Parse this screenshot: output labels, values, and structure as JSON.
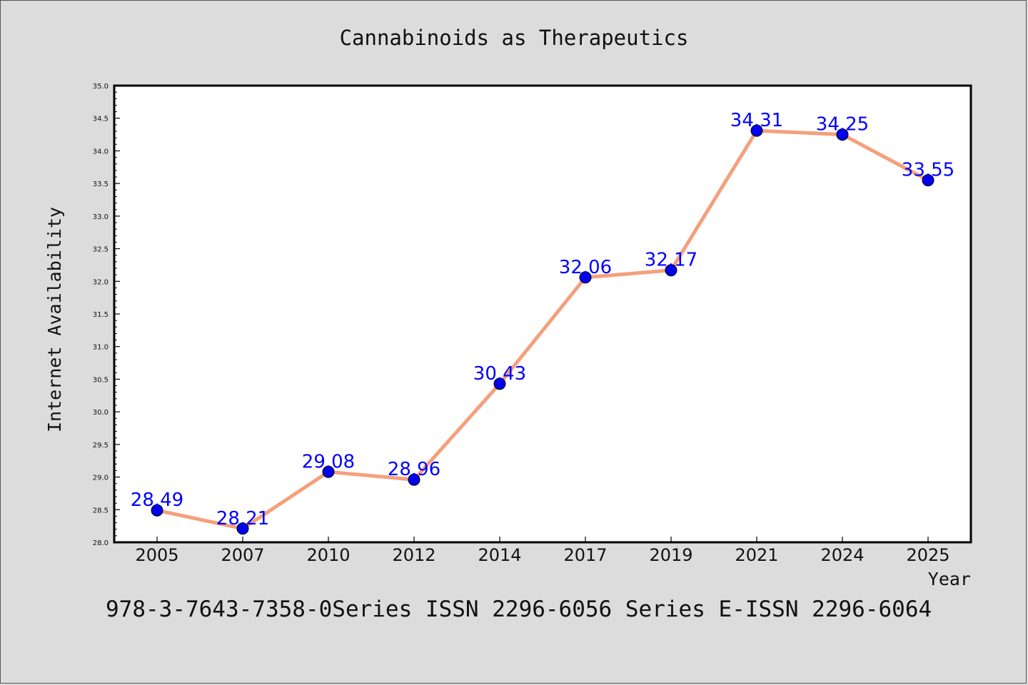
{
  "chart_data": {
    "type": "line",
    "title": "Cannabinoids as Therapeutics",
    "xlabel": "Year",
    "ylabel": "Internet Availability",
    "categories": [
      "2005",
      "2007",
      "2010",
      "2012",
      "2014",
      "2017",
      "2019",
      "2021",
      "2024",
      "2025"
    ],
    "series": [
      {
        "values": [
          28.49,
          28.21,
          29.08,
          28.96,
          30.43,
          32.06,
          32.17,
          34.31,
          34.25,
          33.55
        ],
        "data_labels": [
          "28.49",
          "28.21",
          "29.08",
          "28.96",
          "30.43",
          "32.06",
          "32.17",
          "34.31",
          "34.25",
          "33.55"
        ],
        "line_color": "#f4a07c",
        "marker_color": "#0000ee"
      }
    ],
    "ylim": [
      28.0,
      35.0
    ],
    "yticks": [
      "28.0",
      "28.5",
      "29.0",
      "29.5",
      "30.0",
      "30.5",
      "31.0",
      "31.5",
      "32.0",
      "32.5",
      "33.0",
      "33.5",
      "34.0",
      "34.5",
      "35.0"
    ],
    "grid": false,
    "label_color": "#0000ff"
  },
  "footer": {
    "text": "978-3-7643-7358-0Series ISSN 2296-6056 Series E-ISSN 2296-6064"
  },
  "colors": {
    "background": "#dcdcdc",
    "plot_background": "#ffffff"
  }
}
